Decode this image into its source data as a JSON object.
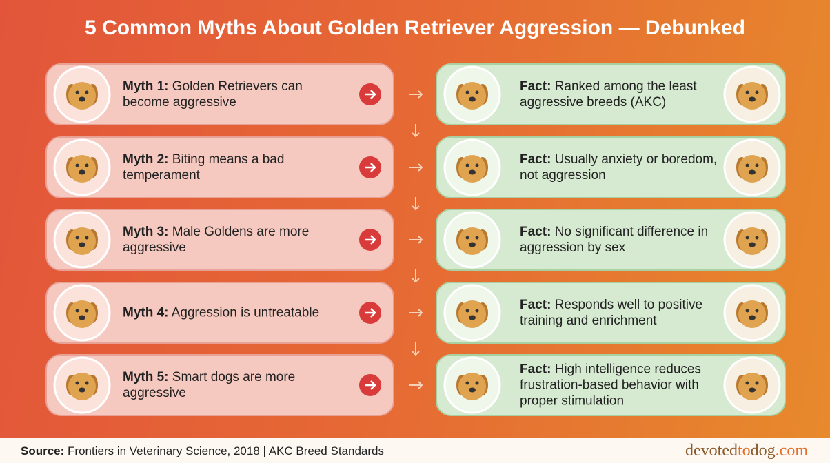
{
  "title": "5 Common Myths About Golden Retriever Aggression — Debunked",
  "myths": [
    {
      "label": "Myth 1:",
      "text": "Golden Retrievers can become aggressive"
    },
    {
      "label": "Myth 2:",
      "text": "Biting means a bad temperament"
    },
    {
      "label": "Myth 3:",
      "text": "Male Goldens are more aggressive"
    },
    {
      "label": "Myth 4:",
      "text": "Aggression is untreatable"
    },
    {
      "label": "Myth 5:",
      "text": "Smart dogs are more aggressive"
    }
  ],
  "facts": [
    {
      "label": "Fact:",
      "text": "Ranked among the least aggressive breeds (AKC)"
    },
    {
      "label": "Fact:",
      "text": "Usually anxiety or boredom, not aggression"
    },
    {
      "label": "Fact:",
      "text": "No significant difference in aggression by sex"
    },
    {
      "label": "Fact:",
      "text": "Responds well to positive training and enrichment"
    },
    {
      "label": "Fact:",
      "text": "High intelligence reduces frustration-based behavior with proper stimulation"
    }
  ],
  "footer": {
    "label": "Source:",
    "text": "Frontiers in Veterinary Science, 2018 | AKC Breed Standards",
    "brand": [
      "devoted",
      "to",
      "dog",
      ".com"
    ]
  }
}
